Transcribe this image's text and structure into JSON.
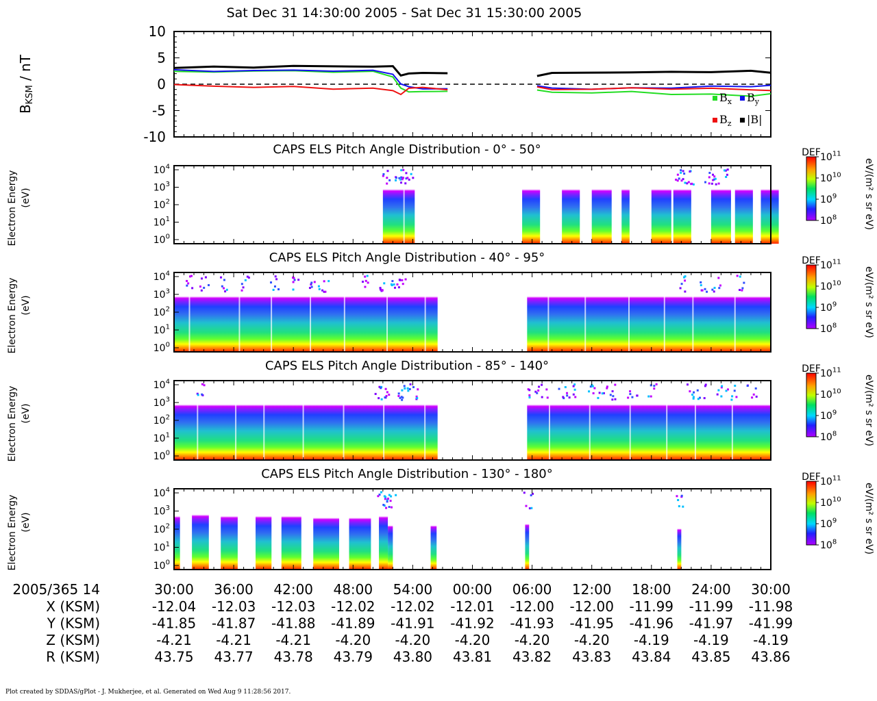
{
  "page": {
    "title": "Sat Dec 31 14:30:00 2005 - Sat Dec 31 15:30:00 2005",
    "footer": "Plot created by SDDAS/gPlot - J. Mukherjee, et al.  Generated on Wed Aug 9 11:28:56 2017."
  },
  "colors": {
    "bx": "#22dd22",
    "by": "#1111ee",
    "bz": "#ee1111",
    "btot": "#000000"
  },
  "chart_data": [
    {
      "type": "line",
      "panel": "magnetic-field",
      "ylabel": "B",
      "ylabel_sub": "KSM",
      "ylabel_unit": " / nT",
      "ylim": [
        -10,
        10
      ],
      "yticks": [
        10,
        5,
        0,
        -5,
        -10
      ],
      "xlim_min": [
        0,
        60
      ],
      "x_min": [
        0,
        4,
        8,
        12,
        16,
        20,
        22,
        22.8,
        23.6,
        25,
        27.5,
        36,
        36.5,
        38,
        42,
        46,
        50,
        54,
        58,
        60
      ],
      "series": [
        {
          "name": "B",
          "name_sub": "x",
          "key": "bx",
          "values": [
            2.3,
            2.4,
            2.5,
            2.5,
            2.4,
            2.3,
            1.5,
            -0.8,
            -1.5,
            -1.3,
            -1.5,
            null,
            -1.2,
            -1.5,
            -1.6,
            -1.5,
            -1.8,
            -2.0,
            -2.2,
            -1.8
          ]
        },
        {
          "name": "B",
          "name_sub": "y",
          "key": "by",
          "values": [
            2.6,
            2.5,
            2.6,
            2.6,
            2.6,
            2.5,
            2.0,
            0.0,
            -0.5,
            -0.8,
            -1.0,
            null,
            -0.4,
            -0.7,
            -0.9,
            -0.8,
            -0.6,
            -0.5,
            -0.4,
            -0.2
          ]
        },
        {
          "name": "B",
          "name_sub": "z",
          "key": "bz",
          "values": [
            -0.2,
            -0.3,
            -0.6,
            -0.5,
            -0.8,
            -0.9,
            -1.1,
            -2.0,
            -0.8,
            -0.5,
            -1.2,
            null,
            -0.6,
            -1.0,
            -0.9,
            -0.8,
            -0.8,
            -0.9,
            -1.0,
            -1.2
          ]
        },
        {
          "name": "|B|",
          "name_sub": "",
          "key": "btot",
          "values": [
            3.2,
            3.2,
            3.3,
            3.4,
            3.4,
            3.4,
            3.3,
            1.8,
            1.9,
            2.2,
            2.1,
            null,
            1.7,
            2.0,
            2.3,
            2.2,
            2.3,
            2.4,
            2.4,
            2.3
          ]
        }
      ],
      "reference_line": 0
    },
    {
      "type": "heatmap",
      "panel": "pitch-angle-0-50",
      "title": "CAPS ELS Pitch Angle Distribution - 0° - 50°",
      "ylabel": "Electron Energy",
      "ylabel_unit": "(eV)",
      "scale": "log",
      "ylim_exp": [
        0,
        4
      ],
      "data_intervals_min": [
        [
          21,
          24.2
        ],
        [
          35,
          36.8
        ],
        [
          39,
          40.8
        ],
        [
          42,
          44
        ],
        [
          45,
          45.8
        ],
        [
          48,
          50
        ],
        [
          50.2,
          52
        ],
        [
          54,
          56
        ],
        [
          56.4,
          58.2
        ],
        [
          59,
          60.8
        ]
      ],
      "bursts_min": [
        21.3,
        22.5,
        23.0,
        23.6,
        50.5,
        51.0,
        52.1,
        53.8,
        54.3,
        55.2
      ]
    },
    {
      "type": "heatmap",
      "panel": "pitch-angle-40-95",
      "title": "CAPS ELS Pitch Angle Distribution - 40° - 95°",
      "ylabel": "Electron Energy",
      "ylabel_unit": "(eV)",
      "scale": "log",
      "ylim_exp": [
        0,
        4
      ],
      "data_intervals_min": [
        [
          0,
          26.5
        ],
        [
          35.5,
          60
        ]
      ],
      "bursts_min": [
        1.5,
        3,
        5,
        7,
        10,
        12,
        14,
        15,
        19,
        21,
        22,
        23,
        51,
        53,
        54.5,
        57
      ]
    },
    {
      "type": "heatmap",
      "panel": "pitch-angle-85-140",
      "title": "CAPS ELS Pitch Angle Distribution - 85° - 140°",
      "ylabel": "Electron Energy",
      "ylabel_unit": "(eV)",
      "scale": "log",
      "ylim_exp": [
        0,
        4
      ],
      "data_intervals_min": [
        [
          0,
          26.5
        ],
        [
          35.5,
          60
        ]
      ],
      "bursts_min": [
        2.5,
        20.5,
        21.5,
        22.5,
        23.2,
        24,
        36,
        37,
        39,
        40,
        42,
        43,
        44,
        46,
        48,
        52,
        53,
        55,
        56,
        58
      ]
    },
    {
      "type": "heatmap",
      "panel": "pitch-angle-130-180",
      "title": "CAPS ELS Pitch Angle Distribution - 130° - 180°",
      "ylabel": "Electron Energy",
      "ylabel_unit": "(eV)",
      "scale": "log",
      "ylim_exp": [
        0,
        4
      ],
      "data_intervals_min": [
        [
          0,
          0.6
        ],
        [
          1.8,
          3.5
        ],
        [
          4.7,
          6.4
        ],
        [
          8.2,
          9.8
        ],
        [
          10.8,
          12.8
        ],
        [
          14,
          16.6
        ],
        [
          17.6,
          19.8
        ],
        [
          20.6,
          21.5
        ],
        [
          21.5,
          22
        ],
        [
          25.8,
          26.4
        ],
        [
          35.3,
          35.7
        ],
        [
          50.6,
          51
        ]
      ],
      "bursts_min": [
        20.8,
        21.3,
        21.8,
        35.5,
        50.8
      ],
      "interval_tops_exp": [
        2.8,
        2.9,
        2.8,
        2.8,
        2.8,
        2.7,
        2.7,
        2.8,
        2.2,
        2.2,
        2.3,
        2.0
      ]
    }
  ],
  "colorbar": {
    "label": "DEF",
    "units": "eV/(m² s sr eV)",
    "ticks": [
      {
        "base": "10",
        "exp": "11"
      },
      {
        "base": "10",
        "exp": "10"
      },
      {
        "base": "10",
        "exp": "9"
      },
      {
        "base": "10",
        "exp": "8"
      }
    ]
  },
  "axis": {
    "time_label": "2005/365 14",
    "ticks": [
      "30:00",
      "36:00",
      "42:00",
      "48:00",
      "54:00",
      "00:00",
      "06:00",
      "12:00",
      "18:00",
      "24:00",
      "30:00"
    ],
    "ephemeris": [
      {
        "label": "X (KSM)",
        "values": [
          "-12.04",
          "-12.03",
          "-12.03",
          "-12.02",
          "-12.02",
          "-12.01",
          "-12.00",
          "-12.00",
          "-11.99",
          "-11.99",
          "-11.98"
        ]
      },
      {
        "label": "Y (KSM)",
        "values": [
          "-41.85",
          "-41.87",
          "-41.88",
          "-41.89",
          "-41.91",
          "-41.92",
          "-41.93",
          "-41.95",
          "-41.96",
          "-41.97",
          "-41.99"
        ]
      },
      {
        "label": "Z (KSM)",
        "values": [
          "-4.21",
          "-4.21",
          "-4.21",
          "-4.20",
          "-4.20",
          "-4.20",
          "-4.20",
          "-4.20",
          "-4.19",
          "-4.19",
          "-4.19"
        ]
      },
      {
        "label": "R (KSM)",
        "values": [
          "43.75",
          "43.77",
          "43.78",
          "43.79",
          "43.80",
          "43.81",
          "43.82",
          "43.83",
          "43.84",
          "43.85",
          "43.86"
        ]
      }
    ]
  }
}
